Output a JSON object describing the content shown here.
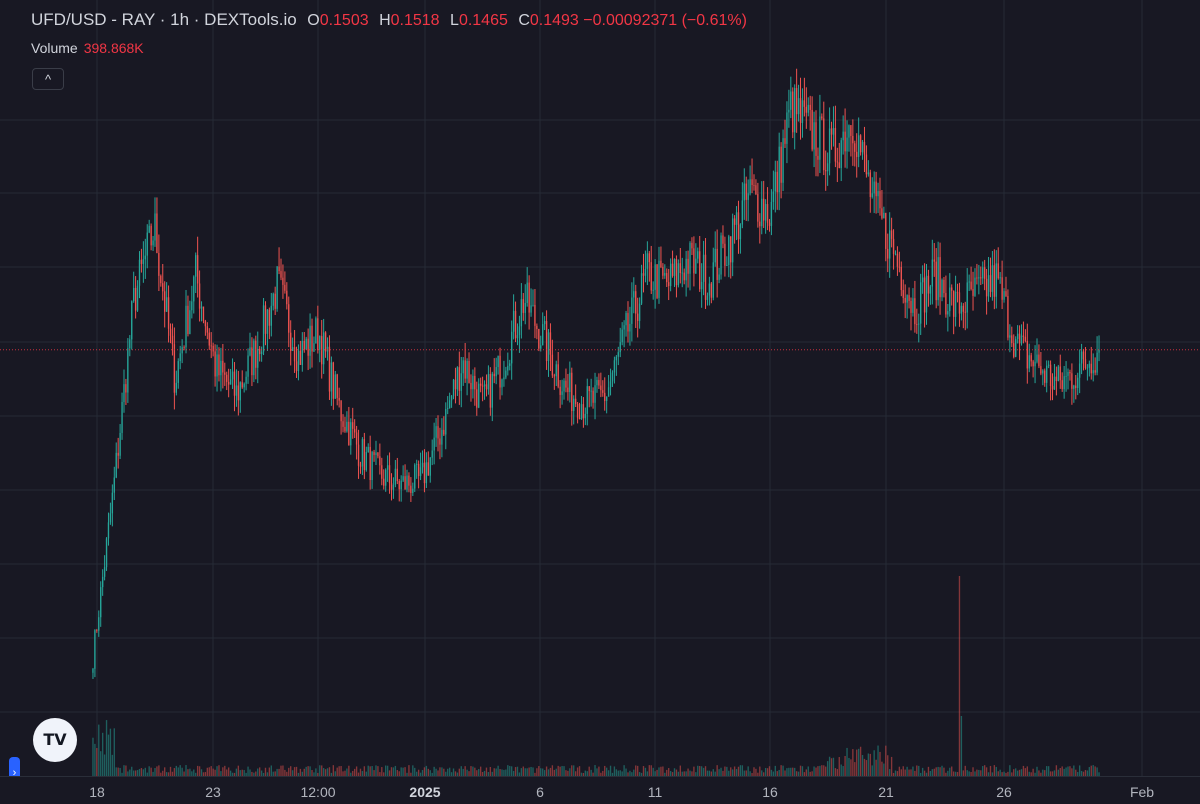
{
  "legend": {
    "symbol": "UFD/USD - RAY · 1h · DEXTools.io",
    "open_key": "O",
    "open": "0.1503",
    "high_key": "H",
    "high": "0.1518",
    "low_key": "L",
    "low": "0.1465",
    "close_key": "C",
    "close": "0.1493",
    "change": "−0.00092371 (−0.61%)",
    "volume_label": "Volume",
    "volume": "398.868K"
  },
  "buttons": {
    "collapse": "^",
    "logo": "TV",
    "side": "›"
  },
  "colors": {
    "up": "#26a69a",
    "down": "#ef5350",
    "background": "#181823",
    "grid": "#262a36",
    "price_line": "#f23645"
  },
  "chart_data": {
    "type": "candlestick",
    "timeframe": "1h",
    "x_tick_labels": [
      "18",
      "23",
      "12:00",
      "2025",
      "6",
      "11",
      "16",
      "21",
      "26",
      "Feb"
    ],
    "x_tick_bold": [
      false,
      false,
      false,
      true,
      false,
      false,
      false,
      false,
      false,
      false
    ],
    "last_close": 0.1493,
    "price_path": [
      {
        "t": "Dec 18 00:00",
        "close": 0.085
      },
      {
        "t": "Dec 18 18:00",
        "close": 0.12
      },
      {
        "t": "Dec 19 06:00",
        "close": 0.16
      },
      {
        "t": "Dec 19 14:00",
        "close": 0.175
      },
      {
        "t": "Dec 20 06:00",
        "close": 0.143
      },
      {
        "t": "Dec 21 06:00",
        "close": 0.165
      },
      {
        "t": "Dec 22 06:00",
        "close": 0.145
      },
      {
        "t": "Dec 23 06:00",
        "close": 0.14
      },
      {
        "t": "Dec 24 06:00",
        "close": 0.15
      },
      {
        "t": "Dec 25 06:00",
        "close": 0.163
      },
      {
        "t": "Dec 26 06:00",
        "close": 0.148
      },
      {
        "t": "Dec 27 00:00",
        "close": 0.153
      },
      {
        "t": "Dec 28 06:00",
        "close": 0.137
      },
      {
        "t": "Dec 29 12:00",
        "close": 0.128
      },
      {
        "t": "Dec 30 12:00",
        "close": 0.123
      },
      {
        "t": "Dec 31 12:00",
        "close": 0.121
      },
      {
        "t": "Jan 01 18:00",
        "close": 0.122
      },
      {
        "t": "Jan 02 12:00",
        "close": 0.133
      },
      {
        "t": "Jan 03 12:00",
        "close": 0.147
      },
      {
        "t": "Jan 04 12:00",
        "close": 0.138
      },
      {
        "t": "Jan 05 12:00",
        "close": 0.147
      },
      {
        "t": "Jan 06 12:00",
        "close": 0.16
      },
      {
        "t": "Jan 07 12:00",
        "close": 0.151
      },
      {
        "t": "Jan 08 12:00",
        "close": 0.141
      },
      {
        "t": "Jan 09 12:00",
        "close": 0.138
      },
      {
        "t": "Jan 10 12:00",
        "close": 0.14
      },
      {
        "t": "Jan 11 12:00",
        "close": 0.153
      },
      {
        "t": "Jan 12 12:00",
        "close": 0.165
      },
      {
        "t": "Jan 13 12:00",
        "close": 0.163
      },
      {
        "t": "Jan 14 12:00",
        "close": 0.168
      },
      {
        "t": "Jan 15 12:00",
        "close": 0.164
      },
      {
        "t": "Jan 16 12:00",
        "close": 0.172
      },
      {
        "t": "Jan 17 12:00",
        "close": 0.182
      },
      {
        "t": "Jan 18 12:00",
        "close": 0.178
      },
      {
        "t": "Jan 19 06:00",
        "close": 0.2
      },
      {
        "t": "Jan 19 18:00",
        "close": 0.195
      },
      {
        "t": "Jan 20 12:00",
        "close": 0.19
      },
      {
        "t": "Jan 21 06:00",
        "close": 0.198
      },
      {
        "t": "Jan 21 18:00",
        "close": 0.18
      },
      {
        "t": "Jan 22 12:00",
        "close": 0.17
      },
      {
        "t": "Jan 23 12:00",
        "close": 0.158
      },
      {
        "t": "Jan 24 06:00",
        "close": 0.165
      },
      {
        "t": "Jan 24 18:00",
        "close": 0.158
      },
      {
        "t": "Jan 25 12:00",
        "close": 0.161
      },
      {
        "t": "Jan 26 06:00",
        "close": 0.164
      },
      {
        "t": "Jan 26 18:00",
        "close": 0.15
      },
      {
        "t": "Jan 27 12:00",
        "close": 0.146
      },
      {
        "t": "Jan 28 06:00",
        "close": 0.142
      },
      {
        "t": "Jan 28 18:00",
        "close": 0.145
      },
      {
        "t": "Jan 29 12:00",
        "close": 0.1493
      }
    ]
  }
}
